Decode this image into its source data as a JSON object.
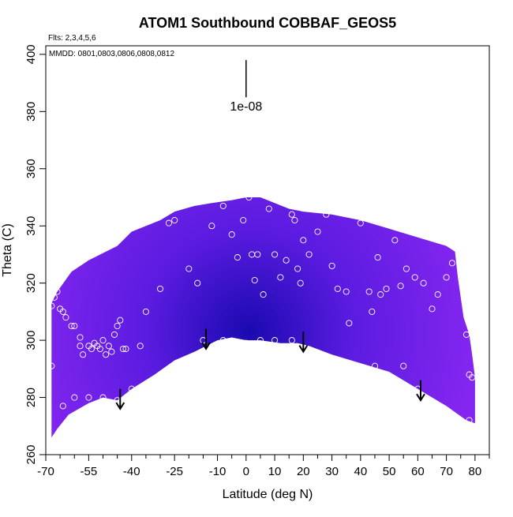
{
  "chart_data": {
    "type": "heatmap",
    "title": "ATOM1 Southbound COBBAF_GEOS5",
    "subtitle_flights": "Flts: 2,3,4,5,6",
    "subtitle_dates": "MMDD: 0801,0803,0806,0808,0812",
    "xlabel": "Latitude (deg N)",
    "ylabel": "Theta (C)",
    "xlim": [
      -70,
      85
    ],
    "ylim": [
      260,
      403
    ],
    "xticks": [
      -70,
      -55,
      -40,
      -25,
      -10,
      0,
      10,
      20,
      30,
      40,
      50,
      60,
      70,
      80
    ],
    "xticks_minor": [
      -65,
      -60,
      -50,
      -45,
      -35,
      -30,
      -20,
      -15,
      -5,
      5,
      15,
      25,
      35,
      45,
      55,
      65,
      75,
      85
    ],
    "yticks": [
      260,
      280,
      300,
      320,
      340,
      360,
      380,
      400
    ],
    "scale_bar": {
      "label": "1e-08",
      "x": 0,
      "y_top": 398,
      "y_bottom": 385
    },
    "colors": {
      "high": "#8426f0",
      "mid": "#5b1be0",
      "low": "#1a0ab0",
      "marker_edge": "#ffffff",
      "arrow": "#000000"
    },
    "boundary": {
      "upper": [
        [
          -68,
          313
        ],
        [
          -66,
          317
        ],
        [
          -61,
          324
        ],
        [
          -55,
          328
        ],
        [
          -45,
          333
        ],
        [
          -40,
          338
        ],
        [
          -30,
          342
        ],
        [
          -25,
          345
        ],
        [
          -18,
          347
        ],
        [
          -12,
          348
        ],
        [
          -5,
          349
        ],
        [
          0,
          350
        ],
        [
          5,
          350
        ],
        [
          10,
          348
        ],
        [
          15,
          346
        ],
        [
          20,
          345
        ],
        [
          30,
          344
        ],
        [
          40,
          342
        ],
        [
          50,
          339
        ],
        [
          60,
          336
        ],
        [
          70,
          333
        ],
        [
          73,
          331
        ],
        [
          74,
          322
        ],
        [
          76,
          308
        ],
        [
          78,
          302
        ],
        [
          79,
          295
        ],
        [
          80,
          287
        ]
      ],
      "lower": [
        [
          -68,
          266
        ],
        [
          -66,
          269
        ],
        [
          -62,
          274
        ],
        [
          -55,
          278
        ],
        [
          -50,
          280
        ],
        [
          -45,
          279
        ],
        [
          -40,
          283
        ],
        [
          -32,
          288
        ],
        [
          -25,
          293
        ],
        [
          -18,
          296
        ],
        [
          -14,
          298
        ],
        [
          -10,
          300
        ],
        [
          -5,
          301
        ],
        [
          0,
          300
        ],
        [
          5,
          300
        ],
        [
          12,
          299
        ],
        [
          18,
          299
        ],
        [
          22,
          298
        ],
        [
          30,
          295
        ],
        [
          40,
          292
        ],
        [
          50,
          289
        ],
        [
          60,
          283
        ],
        [
          70,
          277
        ],
        [
          77,
          272
        ],
        [
          80,
          271
        ]
      ]
    },
    "arrows": [
      {
        "lat": -44,
        "theta_top": 283,
        "theta_bottom": 276
      },
      {
        "lat": -14,
        "theta_top": 304,
        "theta_bottom": 297
      },
      {
        "lat": 20,
        "theta_top": 303,
        "theta_bottom": 296
      },
      {
        "lat": 61,
        "theta_top": 286,
        "theta_bottom": 279
      }
    ],
    "points": [
      [
        -68,
        312
      ],
      [
        -67,
        315
      ],
      [
        -66,
        317
      ],
      [
        -65,
        311
      ],
      [
        -64,
        310
      ],
      [
        -63,
        308
      ],
      [
        -61,
        305
      ],
      [
        -60,
        305
      ],
      [
        -58,
        301
      ],
      [
        -58,
        298
      ],
      [
        -57,
        295
      ],
      [
        -55,
        298
      ],
      [
        -54,
        297
      ],
      [
        -53,
        299
      ],
      [
        -52,
        298
      ],
      [
        -51,
        297
      ],
      [
        -50,
        300
      ],
      [
        -49,
        295
      ],
      [
        -48,
        298
      ],
      [
        -47,
        296
      ],
      [
        -46,
        302
      ],
      [
        -45,
        305
      ],
      [
        -44,
        307
      ],
      [
        -43,
        297
      ],
      [
        -42,
        297
      ],
      [
        -40,
        283
      ],
      [
        -37,
        298
      ],
      [
        -35,
        310
      ],
      [
        -30,
        318
      ],
      [
        -27,
        341
      ],
      [
        -25,
        342
      ],
      [
        -20,
        325
      ],
      [
        -17,
        320
      ],
      [
        -12,
        340
      ],
      [
        -8,
        347
      ],
      [
        -5,
        337
      ],
      [
        -3,
        329
      ],
      [
        -1,
        342
      ],
      [
        1,
        350
      ],
      [
        2,
        330
      ],
      [
        3,
        321
      ],
      [
        4,
        330
      ],
      [
        6,
        316
      ],
      [
        8,
        346
      ],
      [
        10,
        330
      ],
      [
        12,
        322
      ],
      [
        14,
        328
      ],
      [
        16,
        344
      ],
      [
        17,
        342
      ],
      [
        18,
        325
      ],
      [
        19,
        320
      ],
      [
        20,
        335
      ],
      [
        22,
        330
      ],
      [
        25,
        338
      ],
      [
        28,
        344
      ],
      [
        30,
        326
      ],
      [
        32,
        318
      ],
      [
        35,
        317
      ],
      [
        36,
        306
      ],
      [
        40,
        341
      ],
      [
        43,
        317
      ],
      [
        44,
        310
      ],
      [
        46,
        329
      ],
      [
        47,
        316
      ],
      [
        49,
        318
      ],
      [
        52,
        335
      ],
      [
        54,
        319
      ],
      [
        56,
        325
      ],
      [
        59,
        322
      ],
      [
        62,
        320
      ],
      [
        65,
        311
      ],
      [
        67,
        316
      ],
      [
        70,
        322
      ],
      [
        72,
        327
      ],
      [
        75,
        332
      ],
      [
        77,
        302
      ],
      [
        78,
        288
      ],
      [
        79,
        287
      ],
      [
        78,
        272
      ],
      [
        -68,
        291
      ],
      [
        -64,
        277
      ],
      [
        -60,
        280
      ],
      [
        -55,
        280
      ],
      [
        -50,
        280
      ],
      [
        -45,
        279
      ],
      [
        -20,
        293
      ],
      [
        -15,
        300
      ],
      [
        -8,
        300
      ],
      [
        0,
        299
      ],
      [
        5,
        300
      ],
      [
        10,
        300
      ],
      [
        16,
        300
      ],
      [
        25,
        293
      ],
      [
        35,
        291
      ],
      [
        45,
        291
      ],
      [
        55,
        291
      ],
      [
        60,
        283
      ]
    ]
  }
}
